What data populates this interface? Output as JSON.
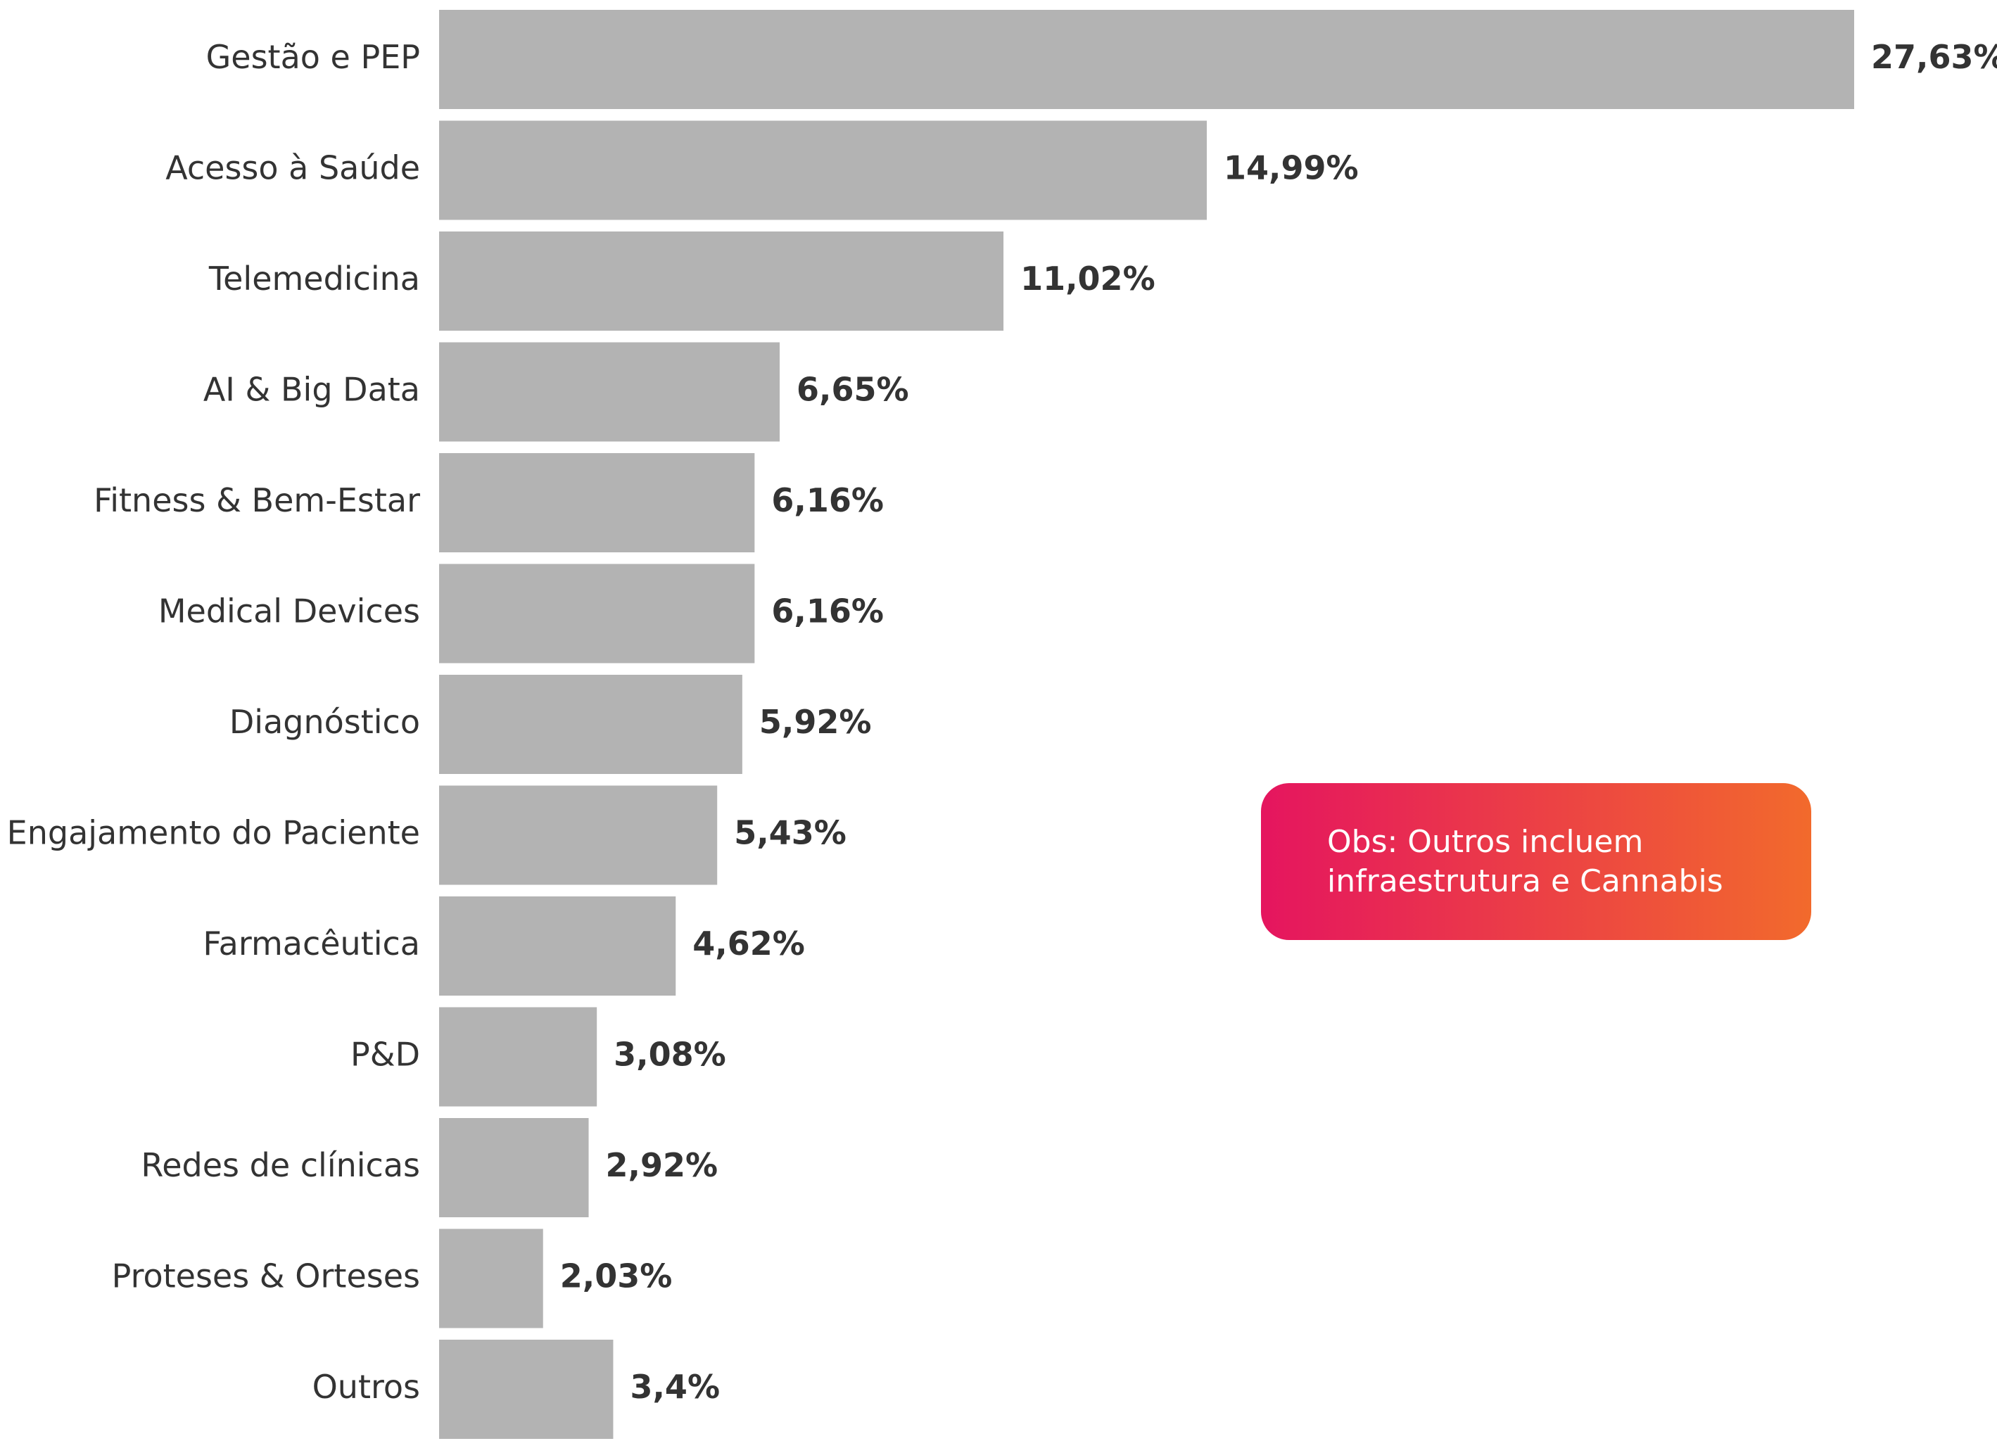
{
  "chart_data": {
    "type": "bar",
    "orientation": "horizontal",
    "categories": [
      "Gestão e PEP",
      "Acesso à Saúde",
      "Telemedicina",
      "AI & Big Data",
      "Fitness & Bem-Estar",
      "Medical Devices",
      "Diagnóstico",
      "Engajamento do Paciente",
      "Farmacêutica",
      "P&D",
      "Redes de clínicas",
      "Proteses & Orteses",
      "Outros"
    ],
    "values": [
      27.63,
      14.99,
      11.02,
      6.65,
      6.16,
      6.16,
      5.92,
      5.43,
      4.62,
      3.08,
      2.92,
      2.03,
      3.4
    ],
    "value_labels": [
      "27,63%",
      "14,99%",
      "11,02%",
      "6,65%",
      "6,16%",
      "6,16%",
      "5,92%",
      "5,43%",
      "4,62%",
      "3,08%",
      "2,92%",
      "2,03%",
      "3,4%"
    ],
    "color": "#b3b3b3",
    "annotation": "Obs: Outros incluem infraestrutura e Cannabis"
  }
}
